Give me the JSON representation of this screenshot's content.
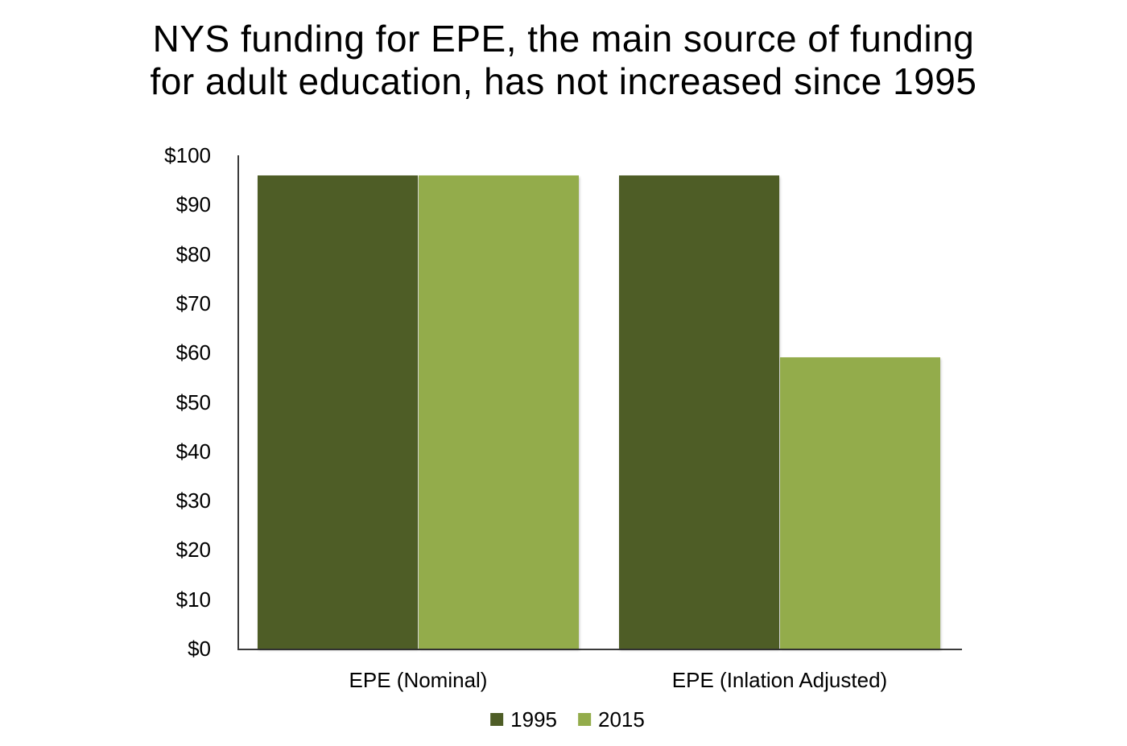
{
  "page": {
    "background_color": "#ffffff",
    "text_color": "#000000",
    "axis_color": "#3a3a3a"
  },
  "chart_data": {
    "type": "bar",
    "title": "NYS funding for EPE, the main source of funding\nfor adult education, has not increased since 1995",
    "categories": [
      "EPE (Nominal)",
      "EPE (Inlation Adjusted)"
    ],
    "series": [
      {
        "name": "1995",
        "color": "#4e5d26",
        "values": [
          96,
          96
        ]
      },
      {
        "name": "2015",
        "color": "#93ac4b",
        "values": [
          96,
          59
        ]
      }
    ],
    "xlabel": "",
    "ylabel": "",
    "ylim": [
      0,
      100
    ],
    "ytick_step": 10,
    "ytick_labels": [
      "$0",
      "$10",
      "$20",
      "$30",
      "$40",
      "$50",
      "$60",
      "$70",
      "$80",
      "$90",
      "$100"
    ],
    "grid": false,
    "legend_position": "bottom",
    "bar_gap_ratio": 0.25
  }
}
